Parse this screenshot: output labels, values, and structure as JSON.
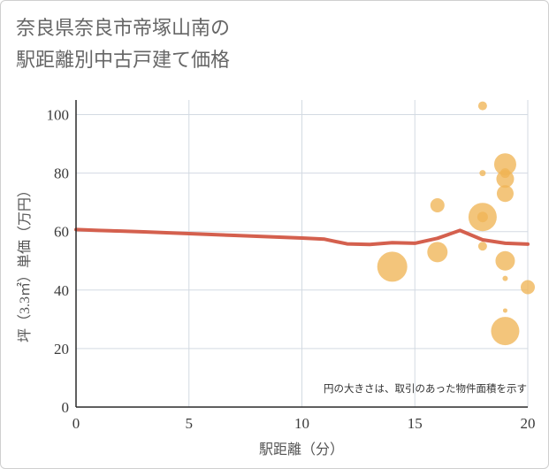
{
  "title_line1": "奈良県奈良市帝塚山南の",
  "title_line2": "駅距離別中古戸建て価格",
  "chart_data": {
    "type": "scatter",
    "title": "奈良県奈良市帝塚山南の駅距離別中古戸建て価格",
    "xlabel": "駅距離（分）",
    "ylabel": "坪（3.3㎡）単価（万円）",
    "xlim": [
      0,
      20
    ],
    "ylim": [
      0,
      105
    ],
    "xticks": [
      0,
      5,
      10,
      15,
      20
    ],
    "yticks": [
      0,
      20,
      40,
      60,
      80,
      100
    ],
    "grid": true,
    "note": "円の大きさは、取引のあった物件面積を示す",
    "colors": {
      "scatter": "#f0b556",
      "trend": "#d4604e"
    },
    "trend_line": {
      "name": "trend",
      "x": [
        0,
        1,
        2,
        3,
        4,
        5,
        6,
        7,
        8,
        9,
        10,
        11,
        12,
        13,
        14,
        15,
        16,
        17,
        18,
        19,
        20
      ],
      "y": [
        60.7,
        60.4,
        60.2,
        59.9,
        59.6,
        59.3,
        59.0,
        58.7,
        58.4,
        58.1,
        57.8,
        57.4,
        55.8,
        55.6,
        56.2,
        56.0,
        57.7,
        60.4,
        57.2,
        56.0,
        55.7
      ]
    },
    "points": [
      {
        "x": 14,
        "y": 48,
        "size": 3.4
      },
      {
        "x": 16,
        "y": 69,
        "size": 1.6
      },
      {
        "x": 16,
        "y": 53,
        "size": 2.3
      },
      {
        "x": 18,
        "y": 103,
        "size": 1.0
      },
      {
        "x": 18,
        "y": 80,
        "size": 0.7
      },
      {
        "x": 18,
        "y": 65,
        "size": 3.2
      },
      {
        "x": 18,
        "y": 65,
        "size": 1.2
      },
      {
        "x": 18,
        "y": 55,
        "size": 1.0
      },
      {
        "x": 19,
        "y": 83,
        "size": 2.5
      },
      {
        "x": 19,
        "y": 80,
        "size": 1.1
      },
      {
        "x": 19,
        "y": 78,
        "size": 2.0
      },
      {
        "x": 19,
        "y": 73,
        "size": 1.9
      },
      {
        "x": 19,
        "y": 50,
        "size": 2.2
      },
      {
        "x": 19,
        "y": 44,
        "size": 0.6
      },
      {
        "x": 19,
        "y": 33,
        "size": 0.5
      },
      {
        "x": 19,
        "y": 26,
        "size": 3.2
      },
      {
        "x": 20,
        "y": 41,
        "size": 1.6
      }
    ]
  }
}
